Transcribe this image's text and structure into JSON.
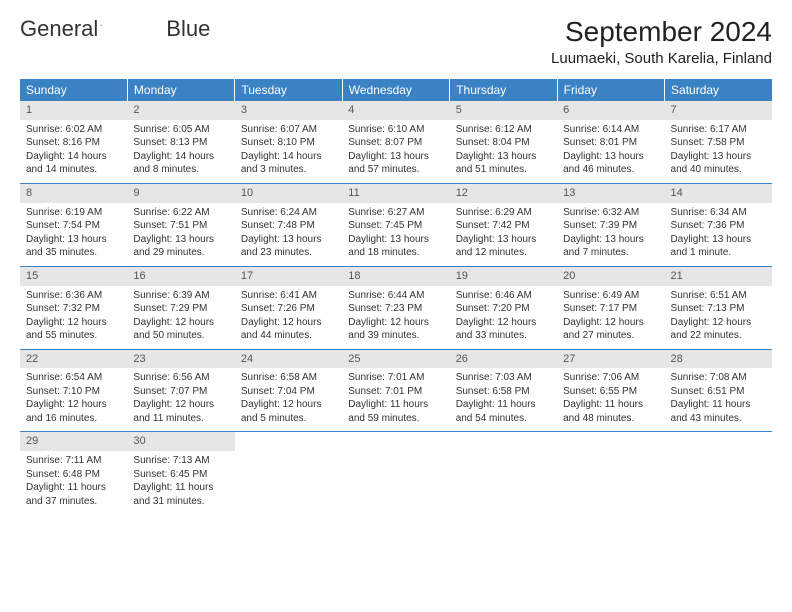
{
  "brand": {
    "general": "General",
    "blue": "Blue"
  },
  "title": "September 2024",
  "location": "Luumaeki, South Karelia, Finland",
  "colors": {
    "header_bg": "#3b82c4",
    "header_fg": "#ffffff",
    "daynum_bg": "#e6e6e6",
    "text": "#333333",
    "border": "#3b82c4"
  },
  "weekdays": [
    "Sunday",
    "Monday",
    "Tuesday",
    "Wednesday",
    "Thursday",
    "Friday",
    "Saturday"
  ],
  "weeks": [
    [
      {
        "n": "1",
        "sr": "Sunrise: 6:02 AM",
        "ss": "Sunset: 8:16 PM",
        "d1": "Daylight: 14 hours",
        "d2": "and 14 minutes."
      },
      {
        "n": "2",
        "sr": "Sunrise: 6:05 AM",
        "ss": "Sunset: 8:13 PM",
        "d1": "Daylight: 14 hours",
        "d2": "and 8 minutes."
      },
      {
        "n": "3",
        "sr": "Sunrise: 6:07 AM",
        "ss": "Sunset: 8:10 PM",
        "d1": "Daylight: 14 hours",
        "d2": "and 3 minutes."
      },
      {
        "n": "4",
        "sr": "Sunrise: 6:10 AM",
        "ss": "Sunset: 8:07 PM",
        "d1": "Daylight: 13 hours",
        "d2": "and 57 minutes."
      },
      {
        "n": "5",
        "sr": "Sunrise: 6:12 AM",
        "ss": "Sunset: 8:04 PM",
        "d1": "Daylight: 13 hours",
        "d2": "and 51 minutes."
      },
      {
        "n": "6",
        "sr": "Sunrise: 6:14 AM",
        "ss": "Sunset: 8:01 PM",
        "d1": "Daylight: 13 hours",
        "d2": "and 46 minutes."
      },
      {
        "n": "7",
        "sr": "Sunrise: 6:17 AM",
        "ss": "Sunset: 7:58 PM",
        "d1": "Daylight: 13 hours",
        "d2": "and 40 minutes."
      }
    ],
    [
      {
        "n": "8",
        "sr": "Sunrise: 6:19 AM",
        "ss": "Sunset: 7:54 PM",
        "d1": "Daylight: 13 hours",
        "d2": "and 35 minutes."
      },
      {
        "n": "9",
        "sr": "Sunrise: 6:22 AM",
        "ss": "Sunset: 7:51 PM",
        "d1": "Daylight: 13 hours",
        "d2": "and 29 minutes."
      },
      {
        "n": "10",
        "sr": "Sunrise: 6:24 AM",
        "ss": "Sunset: 7:48 PM",
        "d1": "Daylight: 13 hours",
        "d2": "and 23 minutes."
      },
      {
        "n": "11",
        "sr": "Sunrise: 6:27 AM",
        "ss": "Sunset: 7:45 PM",
        "d1": "Daylight: 13 hours",
        "d2": "and 18 minutes."
      },
      {
        "n": "12",
        "sr": "Sunrise: 6:29 AM",
        "ss": "Sunset: 7:42 PM",
        "d1": "Daylight: 13 hours",
        "d2": "and 12 minutes."
      },
      {
        "n": "13",
        "sr": "Sunrise: 6:32 AM",
        "ss": "Sunset: 7:39 PM",
        "d1": "Daylight: 13 hours",
        "d2": "and 7 minutes."
      },
      {
        "n": "14",
        "sr": "Sunrise: 6:34 AM",
        "ss": "Sunset: 7:36 PM",
        "d1": "Daylight: 13 hours",
        "d2": "and 1 minute."
      }
    ],
    [
      {
        "n": "15",
        "sr": "Sunrise: 6:36 AM",
        "ss": "Sunset: 7:32 PM",
        "d1": "Daylight: 12 hours",
        "d2": "and 55 minutes."
      },
      {
        "n": "16",
        "sr": "Sunrise: 6:39 AM",
        "ss": "Sunset: 7:29 PM",
        "d1": "Daylight: 12 hours",
        "d2": "and 50 minutes."
      },
      {
        "n": "17",
        "sr": "Sunrise: 6:41 AM",
        "ss": "Sunset: 7:26 PM",
        "d1": "Daylight: 12 hours",
        "d2": "and 44 minutes."
      },
      {
        "n": "18",
        "sr": "Sunrise: 6:44 AM",
        "ss": "Sunset: 7:23 PM",
        "d1": "Daylight: 12 hours",
        "d2": "and 39 minutes."
      },
      {
        "n": "19",
        "sr": "Sunrise: 6:46 AM",
        "ss": "Sunset: 7:20 PM",
        "d1": "Daylight: 12 hours",
        "d2": "and 33 minutes."
      },
      {
        "n": "20",
        "sr": "Sunrise: 6:49 AM",
        "ss": "Sunset: 7:17 PM",
        "d1": "Daylight: 12 hours",
        "d2": "and 27 minutes."
      },
      {
        "n": "21",
        "sr": "Sunrise: 6:51 AM",
        "ss": "Sunset: 7:13 PM",
        "d1": "Daylight: 12 hours",
        "d2": "and 22 minutes."
      }
    ],
    [
      {
        "n": "22",
        "sr": "Sunrise: 6:54 AM",
        "ss": "Sunset: 7:10 PM",
        "d1": "Daylight: 12 hours",
        "d2": "and 16 minutes."
      },
      {
        "n": "23",
        "sr": "Sunrise: 6:56 AM",
        "ss": "Sunset: 7:07 PM",
        "d1": "Daylight: 12 hours",
        "d2": "and 11 minutes."
      },
      {
        "n": "24",
        "sr": "Sunrise: 6:58 AM",
        "ss": "Sunset: 7:04 PM",
        "d1": "Daylight: 12 hours",
        "d2": "and 5 minutes."
      },
      {
        "n": "25",
        "sr": "Sunrise: 7:01 AM",
        "ss": "Sunset: 7:01 PM",
        "d1": "Daylight: 11 hours",
        "d2": "and 59 minutes."
      },
      {
        "n": "26",
        "sr": "Sunrise: 7:03 AM",
        "ss": "Sunset: 6:58 PM",
        "d1": "Daylight: 11 hours",
        "d2": "and 54 minutes."
      },
      {
        "n": "27",
        "sr": "Sunrise: 7:06 AM",
        "ss": "Sunset: 6:55 PM",
        "d1": "Daylight: 11 hours",
        "d2": "and 48 minutes."
      },
      {
        "n": "28",
        "sr": "Sunrise: 7:08 AM",
        "ss": "Sunset: 6:51 PM",
        "d1": "Daylight: 11 hours",
        "d2": "and 43 minutes."
      }
    ],
    [
      {
        "n": "29",
        "sr": "Sunrise: 7:11 AM",
        "ss": "Sunset: 6:48 PM",
        "d1": "Daylight: 11 hours",
        "d2": "and 37 minutes."
      },
      {
        "n": "30",
        "sr": "Sunrise: 7:13 AM",
        "ss": "Sunset: 6:45 PM",
        "d1": "Daylight: 11 hours",
        "d2": "and 31 minutes."
      },
      null,
      null,
      null,
      null,
      null
    ]
  ]
}
